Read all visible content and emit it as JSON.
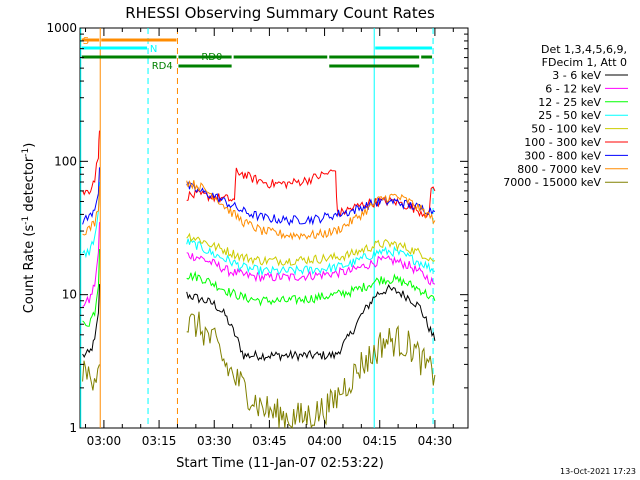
{
  "chart_data": {
    "type": "line",
    "title": "RHESSI Observing Summary Count Rates",
    "xlabel": "Start Time (11-Jan-07 02:53:22)",
    "ylabel_main": "Count Rate (s",
    "ylabel_sup": "-1",
    "ylabel_tail": " detector",
    "ylabel_end": ")",
    "y_scale": "log",
    "ylim": [
      1,
      1000
    ],
    "y_ticks": [
      {
        "value": 1,
        "label": "1"
      },
      {
        "value": 10,
        "label": "10"
      },
      {
        "value": 100,
        "label": "100"
      },
      {
        "value": 1000,
        "label": "1000"
      }
    ],
    "x_range_min": [
      -6.5,
      99
    ],
    "x_ticks": [
      {
        "value": 0,
        "label": "03:00"
      },
      {
        "value": 15,
        "label": "03:15"
      },
      {
        "value": 30,
        "label": "03:30"
      },
      {
        "value": 45,
        "label": "03:45"
      },
      {
        "value": 60,
        "label": "04:00"
      },
      {
        "value": 75,
        "label": "04:15"
      },
      {
        "value": 90,
        "label": "04:30"
      }
    ],
    "legend": {
      "placement": "right",
      "header": [
        "Det 1,3,4,5,6,9,",
        "FDecim 1, Att 0"
      ],
      "entries": [
        {
          "label": "3 - 6 keV",
          "color": "#000000"
        },
        {
          "label": "6 - 12 keV",
          "color": "#ff00ff"
        },
        {
          "label": "12 - 25 keV",
          "color": "#00ff00"
        },
        {
          "label": "25 - 50 keV",
          "color": "#00ffff"
        },
        {
          "label": "50 - 100 keV",
          "color": "#cccc00"
        },
        {
          "label": "100 - 300 keV",
          "color": "#ff0000"
        },
        {
          "label": "300 - 800 keV",
          "color": "#0000ff"
        },
        {
          "label": "800 - 7000 keV",
          "color": "#ff8c00"
        },
        {
          "label": "7000 - 15000 keV",
          "color": "#808000"
        }
      ]
    },
    "series": [
      {
        "name": "3 - 6 keV",
        "color": "#000000",
        "segments": [
          {
            "x": [
              -5.8,
              -4,
              -2.5,
              -1.5,
              -1.2
            ],
            "y": [
              3.5,
              3.6,
              4.5,
              7,
              12
            ]
          },
          {
            "x": [
              22.5,
              25,
              30,
              33,
              36,
              38,
              42,
              50,
              58,
              63,
              67,
              70,
              74,
              77,
              80,
              83,
              86,
              88,
              90
            ],
            "y": [
              10,
              9.5,
              8.5,
              7,
              4.8,
              3.5,
              3.5,
              3.5,
              3.5,
              3.5,
              5,
              7,
              10,
              11,
              10.5,
              9.5,
              8,
              6,
              4.5
            ]
          }
        ]
      },
      {
        "name": "6 - 12 keV",
        "color": "#ff00ff",
        "segments": [
          {
            "x": [
              -5.8,
              -4,
              -2.5,
              -1.5,
              -1.2
            ],
            "y": [
              8.5,
              9,
              12,
              20,
              35
            ]
          },
          {
            "x": [
              22.5,
              26,
              30,
              34,
              38,
              43,
              50,
              58,
              63,
              67,
              71,
              75,
              79,
              83,
              87,
              90
            ],
            "y": [
              20,
              19,
              17,
              15,
              14,
              13.5,
              13.5,
              14,
              14.5,
              15,
              16.5,
              18,
              18,
              16.5,
              14,
              12
            ]
          }
        ]
      },
      {
        "name": "12 - 25 keV",
        "color": "#00ff00",
        "segments": [
          {
            "x": [
              -5.8,
              -4,
              -2.5,
              -1.5,
              -1.2
            ],
            "y": [
              6,
              6.2,
              7.5,
              12,
              22
            ]
          },
          {
            "x": [
              22.5,
              26,
              30,
              34,
              38,
              43,
              50,
              58,
              63,
              67,
              71,
              75,
              79,
              83,
              87,
              90
            ],
            "y": [
              14,
              13.5,
              12,
              10.5,
              9.5,
              9,
              9,
              9.5,
              10,
              10.5,
              11.5,
              13,
              13,
              12,
              10.5,
              9
            ]
          }
        ]
      },
      {
        "name": "25 - 50 keV",
        "color": "#00ffff",
        "segments": [
          {
            "x": [
              -5.8,
              -4,
              -2.5,
              -1.5,
              -1.2
            ],
            "y": [
              20,
              21,
              27,
              40,
              70
            ]
          },
          {
            "x": [
              22.5,
              26,
              30,
              34,
              38,
              43,
              50,
              58,
              63,
              67,
              71,
              75,
              79,
              83,
              87,
              90
            ],
            "y": [
              25,
              23,
              20,
              18,
              16,
              15,
              15,
              15.5,
              16,
              17,
              19,
              21,
              21,
              19,
              17,
              15
            ]
          }
        ]
      },
      {
        "name": "50 - 100 keV",
        "color": "#cccc00",
        "segments": [
          {
            "x": [
              22.5,
              26,
              30,
              34,
              38,
              43,
              50,
              58,
              63,
              67,
              71,
              75,
              79,
              83,
              87,
              90
            ],
            "y": [
              28,
              26,
              23,
              21,
              19,
              18,
              18,
              18.5,
              19,
              20,
              22,
              24,
              24,
              22,
              20,
              18
            ]
          }
        ]
      },
      {
        "name": "100 - 300 keV",
        "color": "#ff0000",
        "segments": [
          {
            "x": [
              -5.8,
              -4,
              -2.5,
              -1.5,
              -1.2
            ],
            "y": [
              58,
              60,
              75,
              110,
              170
            ]
          },
          {
            "x": [
              22.5,
              26,
              30,
              34,
              35.5,
              36,
              40,
              45,
              50,
              55,
              60,
              63,
              63.5,
              67,
              71,
              75,
              79,
              83,
              87,
              88.5,
              89,
              90
            ],
            "y": [
              55,
              56,
              54,
              52,
              51,
              85,
              75,
              68,
              68,
              72,
              80,
              85,
              40,
              44,
              48,
              50,
              50,
              46,
              41,
              40,
              65,
              60
            ]
          }
        ]
      },
      {
        "name": "300 - 800 keV",
        "color": "#0000ff",
        "segments": [
          {
            "x": [
              -5.8,
              -4,
              -2.5,
              -1.5,
              -1.2
            ],
            "y": [
              36,
              38,
              45,
              60,
              90
            ]
          },
          {
            "x": [
              22.5,
              26,
              30,
              34,
              38,
              43,
              50,
              58,
              63,
              67,
              71,
              75,
              79,
              83,
              87,
              90
            ],
            "y": [
              65,
              60,
              55,
              48,
              42,
              38,
              36,
              37,
              40,
              42,
              46,
              50,
              50,
              47,
              44,
              42
            ]
          }
        ]
      },
      {
        "name": "800 - 7000 keV",
        "color": "#ff8c00",
        "segments": [
          {
            "x": [
              -5.8,
              -4,
              -2.5,
              -1.5,
              -1.2
            ],
            "y": [
              30,
              31,
              35,
              45,
              65
            ]
          },
          {
            "x": [
              22.5,
              26,
              30,
              34,
              38,
              43,
              50,
              58,
              63,
              67,
              71,
              75,
              79,
              83,
              87,
              90
            ],
            "y": [
              70,
              65,
              55,
              43,
              35,
              30,
              28,
              28,
              30,
              35,
              42,
              52,
              55,
              50,
              42,
              36
            ]
          }
        ]
      },
      {
        "name": "7000 - 15000 keV",
        "color": "#808000",
        "segments": [
          {
            "x": [
              -5.8,
              -3,
              -1.2
            ],
            "y": [
              2.5,
              2.5,
              3
            ]
          },
          {
            "x": [
              22.5,
              25,
              28,
              31,
              33,
              35,
              38,
              42,
              46,
              50,
              54,
              58,
              62,
              65,
              68,
              70,
              73,
              76,
              80,
              84,
              87,
              90
            ],
            "y": [
              6,
              6,
              5,
              4,
              3,
              2.5,
              2,
              1.5,
              1.3,
              1.2,
              1.2,
              1.3,
              1.5,
              2,
              2.5,
              3,
              3.5,
              4.5,
              4.5,
              4,
              3,
              2.5
            ]
          }
        ]
      }
    ],
    "vlines": [
      {
        "x": -6.3,
        "color": "#00ffff",
        "dash": false
      },
      {
        "x": -1.0,
        "color": "#ff8c00",
        "dash": false
      },
      {
        "x": 12.0,
        "color": "#00ffff",
        "dash": true
      },
      {
        "x": 20.0,
        "color": "#ff8c00",
        "dash": true
      },
      {
        "x": 73.5,
        "color": "#00ffff",
        "dash": false
      },
      {
        "x": 89.5,
        "color": "#00ffff",
        "dash": true
      }
    ],
    "state_bars": [
      {
        "name": "S",
        "label": "S",
        "color": "#ff8c00",
        "segments": [
          [
            -6.3,
            -1.0
          ],
          [
            -1.0,
            20.0
          ]
        ],
        "level": 0
      },
      {
        "name": "N",
        "label": "N",
        "color": "#00ffff",
        "segments": [
          [
            -6.3,
            12.0
          ],
          [
            73.5,
            89.5
          ]
        ],
        "level": 1
      },
      {
        "name": "RD0",
        "label": "RD0",
        "color": "#008000",
        "segments": [
          [
            -6.3,
            20.0
          ],
          [
            20.0,
            35.0
          ],
          [
            35.0,
            61.0
          ],
          [
            61.0,
            86.0
          ],
          [
            86.0,
            89.5
          ]
        ],
        "level": 2
      },
      {
        "name": "RD4",
        "label": "RD4",
        "color": "#008000",
        "segments": [
          [
            20.0,
            35.0
          ],
          [
            61.0,
            86.0
          ]
        ],
        "level": 3
      }
    ],
    "footer": "13-Oct-2021 17:23"
  }
}
